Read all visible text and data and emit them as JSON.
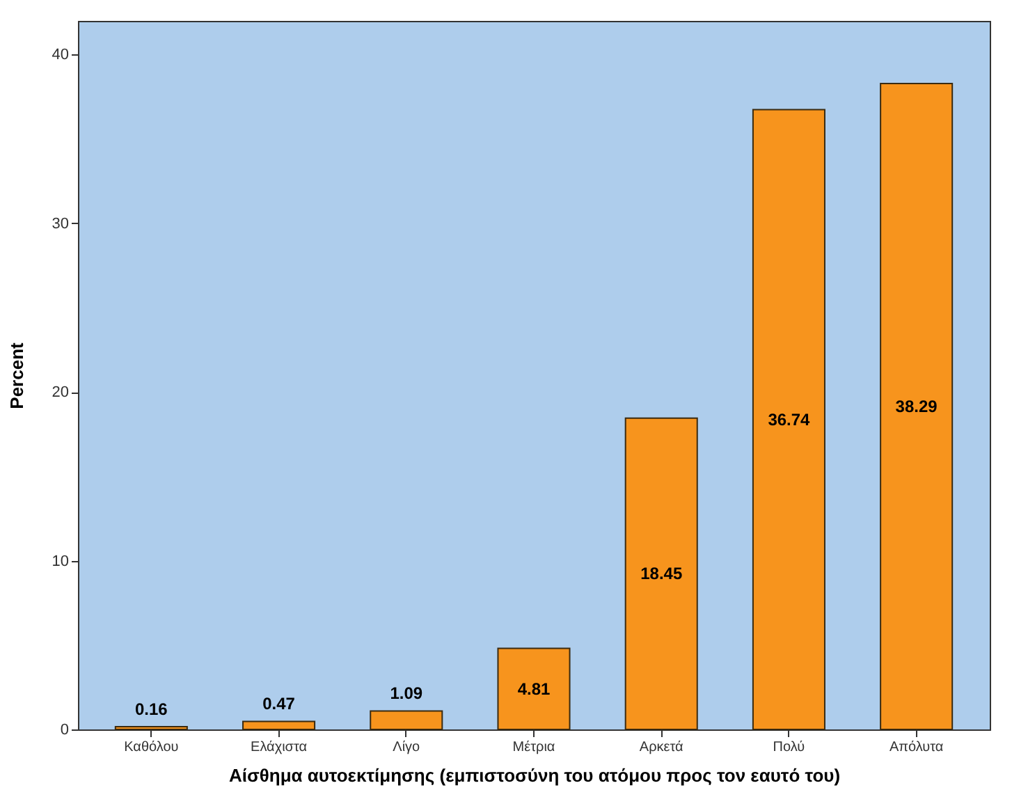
{
  "chart_data": {
    "type": "bar",
    "xlabel": "Αίσθημα αυτοεκτίμησης (εμπιστοσύνη του ατόμου προς τον εαυτό του)",
    "ylabel": "Percent",
    "categories": [
      "Καθόλου",
      "Ελάχιστα",
      "Λίγο",
      "Μέτρια",
      "Αρκετά",
      "Πολύ",
      "Απόλυτα"
    ],
    "values": [
      0.16,
      0.47,
      1.09,
      4.81,
      18.45,
      36.74,
      38.29
    ],
    "color": "#f7941d",
    "ylim": [
      0,
      42
    ],
    "yticks": [
      0,
      10,
      20,
      30,
      40
    ],
    "grid": false,
    "data_labels": true
  }
}
